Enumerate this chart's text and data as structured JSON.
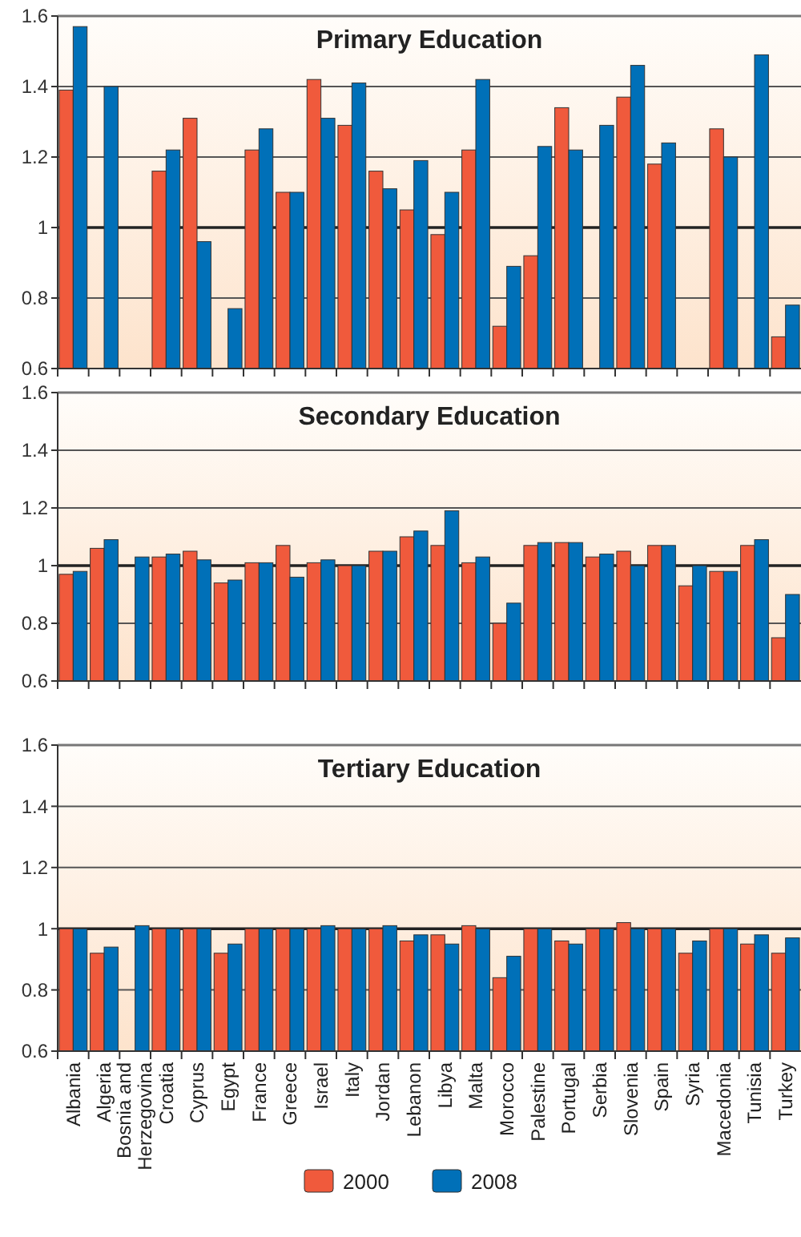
{
  "chart_data": [
    {
      "type": "bar",
      "title": "Primary Education",
      "categories": [
        null,
        null,
        null,
        null,
        null,
        null,
        null,
        null,
        null,
        null,
        null,
        null,
        null,
        null,
        null,
        null,
        null,
        null,
        null,
        null,
        null,
        null,
        null,
        null
      ],
      "ylim": [
        0.6,
        1.6
      ],
      "yticks": [
        0.6,
        0.8,
        1,
        1.2,
        1.4,
        1.6
      ],
      "grid": "y",
      "tick_labels": "y",
      "ref_lines": [
        {
          "axis": "y",
          "value": 1,
          "color": "#222222"
        }
      ],
      "series": [
        {
          "color": "#f05a3c",
          "values": [
            1.39,
            null,
            null,
            1.16,
            1.31,
            null,
            1.22,
            1.1,
            1.42,
            1.29,
            1.16,
            1.05,
            0.98,
            1.22,
            0.72,
            0.92,
            1.34,
            null,
            1.37,
            1.18,
            null,
            1.28,
            null,
            0.69
          ]
        },
        {
          "color": "#0070b8",
          "values": [
            1.57,
            1.4,
            null,
            1.22,
            0.96,
            0.77,
            1.28,
            1.1,
            1.31,
            1.41,
            1.11,
            1.19,
            1.1,
            1.42,
            0.89,
            1.23,
            1.22,
            1.29,
            1.46,
            1.24,
            null,
            1.2,
            1.49,
            0.78
          ]
        }
      ]
    },
    {
      "type": "bar",
      "title": "Secondary Education",
      "categories": [
        null,
        null,
        null,
        null,
        null,
        null,
        null,
        null,
        null,
        null,
        null,
        null,
        null,
        null,
        null,
        null,
        null,
        null,
        null,
        null,
        null,
        null,
        null,
        null
      ],
      "ylim": [
        0.6,
        1.6
      ],
      "yticks": [
        0.6,
        0.8,
        1,
        1.2,
        1.4,
        1.6
      ],
      "grid": "y",
      "tick_labels": "y",
      "ref_lines": [
        {
          "axis": "y",
          "value": 1,
          "color": "#222222"
        }
      ],
      "series": [
        {
          "color": "#f05a3c",
          "values": [
            0.97,
            1.06,
            null,
            1.03,
            1.05,
            0.94,
            1.01,
            1.07,
            1.01,
            1.0,
            1.05,
            1.1,
            1.07,
            1.01,
            0.8,
            1.07,
            1.08,
            1.03,
            1.05,
            1.07,
            0.93,
            0.98,
            1.07,
            0.75
          ]
        },
        {
          "color": "#0070b8",
          "values": [
            0.98,
            1.09,
            1.03,
            1.04,
            1.02,
            0.95,
            1.01,
            0.96,
            1.02,
            1.0,
            1.05,
            1.12,
            1.19,
            1.03,
            0.87,
            1.08,
            1.08,
            1.04,
            1.0,
            1.07,
            1.0,
            0.98,
            1.09,
            0.9
          ]
        }
      ]
    },
    {
      "type": "bar",
      "title": "Tertiary Education",
      "categories": [
        "Albania",
        "Algeria",
        "Bosnia and Herzegovina",
        "Croatia",
        "Cyprus",
        "Egypt",
        "France",
        "Greece",
        "Israel",
        "Italy",
        "Jordan",
        "Lebanon",
        "Libya",
        "Malta",
        "Morocco",
        "Palestine",
        "Portugal",
        "Serbia",
        "Slovenia",
        "Spain",
        "Syria",
        "Macedonia",
        "Tunisia",
        "Turkey"
      ],
      "ylim": [
        0.6,
        1.6
      ],
      "yticks": [
        0.6,
        0.8,
        1,
        1.2,
        1.4,
        1.6
      ],
      "grid": "y",
      "legend": "bottom",
      "ref_lines": [
        {
          "axis": "y",
          "value": 1,
          "color": "#222222"
        }
      ],
      "series": [
        {
          "name": "2000",
          "color": "#f05a3c",
          "values": [
            1.0,
            0.92,
            null,
            1.0,
            1.0,
            0.92,
            1.0,
            1.0,
            1.0,
            1.0,
            1.0,
            0.96,
            0.98,
            1.01,
            0.84,
            1.0,
            0.96,
            1.0,
            1.02,
            1.0,
            0.92,
            1.0,
            0.95,
            0.92
          ]
        },
        {
          "name": "2008",
          "color": "#0070b8",
          "values": [
            1.0,
            0.94,
            1.01,
            1.0,
            1.0,
            0.95,
            1.0,
            1.0,
            1.01,
            1.0,
            1.01,
            0.98,
            0.95,
            1.0,
            0.91,
            1.0,
            0.95,
            1.0,
            1.0,
            1.0,
            0.96,
            1.0,
            0.98,
            0.97
          ]
        }
      ]
    }
  ]
}
